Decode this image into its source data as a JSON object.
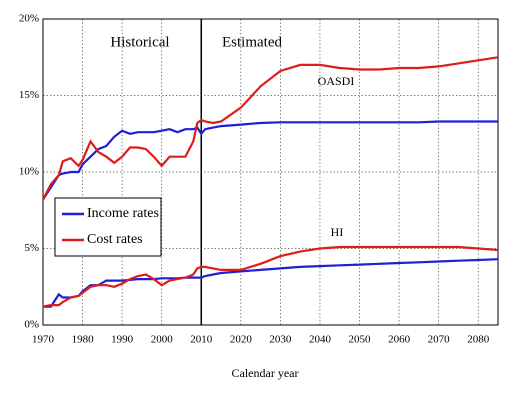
{
  "chart_data": {
    "type": "line",
    "x_label": "Calendar year",
    "x": [
      1970,
      1972,
      1974,
      1975,
      1977,
      1979,
      1980,
      1982,
      1984,
      1986,
      1988,
      1990,
      1992,
      1994,
      1996,
      1998,
      2000,
      2002,
      2004,
      2006,
      2008,
      2009,
      2010,
      2011,
      2013,
      2015,
      2020,
      2025,
      2030,
      2035,
      2040,
      2045,
      2050,
      2055,
      2060,
      2065,
      2070,
      2075,
      2080,
      2085
    ],
    "series": [
      {
        "name": "Income rates",
        "color": "#1f1fd6",
        "values": [
          8.2,
          9.0,
          9.8,
          9.9,
          10.0,
          10.0,
          10.5,
          11.0,
          11.5,
          11.7,
          12.3,
          12.7,
          12.5,
          12.6,
          12.6,
          12.6,
          12.7,
          12.8,
          12.6,
          12.8,
          12.8,
          12.9,
          12.5,
          12.8,
          12.9,
          13.0,
          13.1,
          13.2,
          13.25,
          13.25,
          13.25,
          13.25,
          13.25,
          13.25,
          13.25,
          13.25,
          13.3,
          13.3,
          13.3,
          13.3
        ]
      },
      {
        "name": "Cost rates",
        "color": "#dd1c1c",
        "values": [
          8.2,
          9.2,
          9.8,
          10.7,
          10.9,
          10.4,
          10.8,
          12.0,
          11.3,
          11.0,
          10.6,
          11.0,
          11.6,
          11.6,
          11.5,
          11.0,
          10.4,
          11.0,
          11.0,
          11.0,
          12.0,
          13.2,
          13.4,
          13.3,
          13.2,
          13.3,
          14.2,
          15.6,
          16.6,
          17.0,
          17.0,
          16.8,
          16.7,
          16.7,
          16.8,
          16.8,
          16.9,
          17.1,
          17.3,
          17.5
        ]
      },
      {
        "color": "#1f1fd6",
        "values": [
          1.2,
          1.2,
          2.0,
          1.8,
          1.8,
          1.9,
          2.2,
          2.6,
          2.6,
          2.9,
          2.9,
          2.9,
          2.95,
          3.0,
          3.0,
          3.0,
          3.05,
          3.05,
          3.05,
          3.1,
          3.1,
          3.1,
          3.1,
          3.2,
          3.3,
          3.4,
          3.5,
          3.6,
          3.7,
          3.8,
          3.85,
          3.9,
          3.95,
          4.0,
          4.05,
          4.1,
          4.15,
          4.2,
          4.25,
          4.3
        ]
      },
      {
        "color": "#dd1c1c",
        "values": [
          1.2,
          1.3,
          1.3,
          1.5,
          1.8,
          1.9,
          2.1,
          2.5,
          2.6,
          2.6,
          2.5,
          2.7,
          3.0,
          3.2,
          3.3,
          3.0,
          2.6,
          2.9,
          3.0,
          3.1,
          3.3,
          3.7,
          3.8,
          3.8,
          3.7,
          3.6,
          3.6,
          4.0,
          4.5,
          4.8,
          5.0,
          5.1,
          5.1,
          5.1,
          5.1,
          5.1,
          5.1,
          5.1,
          5.0,
          4.9
        ]
      }
    ],
    "annotations": [
      "Historical",
      "Estimated",
      "OASDI",
      "HI"
    ],
    "divider_x": 2010,
    "xlim": [
      1970,
      2085
    ],
    "xticks": [
      1970,
      1980,
      1990,
      2000,
      2010,
      2020,
      2030,
      2040,
      2050,
      2060,
      2070,
      2080
    ],
    "ylim": [
      0,
      20
    ],
    "yticks": [
      {
        "value": 0,
        "label": "0%"
      },
      {
        "value": 5,
        "label": "5%"
      },
      {
        "value": 10,
        "label": "10%"
      },
      {
        "value": 15,
        "label": "15%"
      },
      {
        "value": 20,
        "label": "20%"
      }
    ],
    "grid": true
  }
}
